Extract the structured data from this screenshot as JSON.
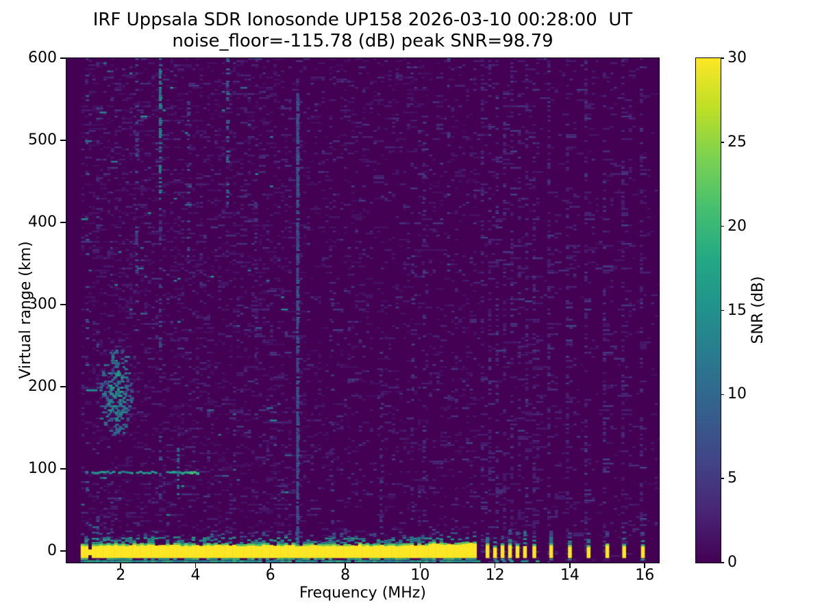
{
  "chart_data": {
    "type": "heatmap",
    "title": "IRF Uppsala SDR Ionosonde UP158 2026-03-10 00:28:00  UT",
    "subtitle": "noise_floor=-115.78 (dB) peak SNR=98.79",
    "xlabel": "Frequency (MHz)",
    "ylabel": "Virtual range (km)",
    "xlim": [
      0.55,
      16.38
    ],
    "ylim": [
      -14,
      600
    ],
    "x_ticks": [
      2,
      4,
      6,
      8,
      10,
      12,
      14,
      16
    ],
    "y_ticks": [
      0,
      100,
      200,
      300,
      400,
      500,
      600
    ],
    "colorbar": {
      "label": "SNR (dB)",
      "min": 0,
      "max": 30,
      "ticks": [
        0,
        5,
        10,
        15,
        20,
        25,
        30
      ],
      "colormap": "viridis",
      "colors": [
        "#440154",
        "#482475",
        "#414487",
        "#355f8d",
        "#2a788e",
        "#21918c",
        "#22a884",
        "#44bf70",
        "#7ad151",
        "#bddf26",
        "#fde725"
      ]
    },
    "features": {
      "data_f_start_mhz": 0.93,
      "ground_pulse_band": {
        "f_mhz": [
          0.93,
          11.45
        ],
        "km": [
          -8.5,
          7
        ],
        "snr_db": 30,
        "ragged_start_until_mhz": 1.25,
        "thicker_top_from_mhz": 9.3
      },
      "underline_echo": {
        "km": -11.2,
        "f_mhz": [
          0.93,
          11.55
        ],
        "snr_db": [
          12,
          20
        ],
        "faint_extension_to_mhz": 13.1
      },
      "discrete_bars_mhz": [
        11.8,
        12.0,
        12.2,
        12.4,
        12.6,
        12.8,
        13.05,
        13.5,
        14.0,
        14.5,
        15.0,
        15.45,
        15.95
      ],
      "bar_km": [
        -8.5,
        6
      ],
      "e_region_echo": {
        "km": 97,
        "f_mhz": [
          1.05,
          4.05
        ],
        "snr_db": [
          12,
          21
        ],
        "gap_f_mhz": [
          2.9,
          3.12
        ],
        "bright_f_mhz": [
          3.35,
          4.05
        ],
        "cross_f_mhz": 3.5,
        "cross_km": [
          68,
          128
        ]
      },
      "echo_dash_200km": {
        "km": 197,
        "f_mhz": [
          1.08,
          1.52
        ],
        "snr_db": [
          11,
          15
        ]
      },
      "scatter_blob": {
        "f_mhz": [
          1.45,
          2.25
        ],
        "km": [
          140,
          245
        ],
        "center_f_mhz": 1.85,
        "center_km": 192,
        "snr_db": [
          6,
          18
        ]
      },
      "noise_stripes": [
        {
          "f_mhz": 1.1,
          "km": [
            -12,
            600
          ],
          "density": 0.1,
          "snr_db": [
            4,
            10
          ]
        },
        {
          "f_mhz": 1.38,
          "km": [
            0,
            600
          ],
          "density": 0.09,
          "snr_db": [
            3,
            7
          ]
        },
        {
          "f_mhz": 1.75,
          "km": [
            0,
            600
          ],
          "density": 0.07,
          "snr_db": [
            3,
            6
          ]
        },
        {
          "f_mhz": 2.42,
          "km": [
            250,
            600
          ],
          "density": 0.22,
          "snr_db": [
            4,
            9
          ]
        },
        {
          "f_mhz": 3.05,
          "km": [
            430,
            600
          ],
          "density": 0.65,
          "snr_db": [
            9,
            16
          ]
        },
        {
          "f_mhz": 3.05,
          "km": [
            60,
            430
          ],
          "density": 0.22,
          "snr_db": [
            4,
            9
          ]
        },
        {
          "f_mhz": 3.8,
          "km": [
            350,
            560
          ],
          "density": 0.25,
          "snr_db": [
            4,
            8
          ]
        },
        {
          "f_mhz": 4.85,
          "km": [
            420,
            600
          ],
          "density": 0.4,
          "snr_db": [
            6,
            13
          ]
        },
        {
          "f_mhz": 5.6,
          "km": [
            100,
            480
          ],
          "density": 0.12,
          "snr_db": [
            3,
            6
          ]
        },
        {
          "f_mhz": 6.72,
          "km": [
            -12,
            560
          ],
          "density": 0.85,
          "snr_db": [
            6,
            10
          ]
        },
        {
          "f_mhz": 7.65,
          "km": [
            0,
            320
          ],
          "density": 0.16,
          "snr_db": [
            3,
            6
          ]
        },
        {
          "f_mhz": 8.95,
          "km": [
            -8,
            260
          ],
          "density": 0.2,
          "snr_db": [
            3,
            6
          ]
        },
        {
          "f_mhz": 9.8,
          "km": [
            0,
            380
          ],
          "density": 0.13,
          "snr_db": [
            3,
            6
          ]
        },
        {
          "f_mhz": 10.1,
          "km": [
            -5,
            600
          ],
          "density": 0.15,
          "snr_db": [
            3,
            6
          ]
        },
        {
          "f_mhz": 10.75,
          "km": [
            280,
            600
          ],
          "density": 0.14,
          "snr_db": [
            4,
            8
          ]
        }
      ],
      "periodic_stripes": [
        {
          "f_start": 11.7,
          "f_end": 13.1,
          "step_mhz": 0.195,
          "density": 0.3,
          "snr_db": [
            2,
            7
          ]
        },
        {
          "f_start": 13.4,
          "f_end": 15.95,
          "step_mhz": 0.5,
          "density": 0.33,
          "snr_db": [
            2,
            7
          ]
        },
        {
          "f_start": 13.15,
          "f_end": 15.9,
          "step_mhz": 0.25,
          "density": 0.1,
          "snr_db": [
            2,
            5
          ]
        }
      ],
      "background_speckle": {
        "density_f_below_6p5": 0.17,
        "density_f_6p5_to_11p55": 0.12,
        "density_f_above_11p55": 0.045,
        "snr_db": [
          1,
          6
        ],
        "teal_chance_low_f": 0.035
      }
    },
    "render_seed": 1337
  }
}
